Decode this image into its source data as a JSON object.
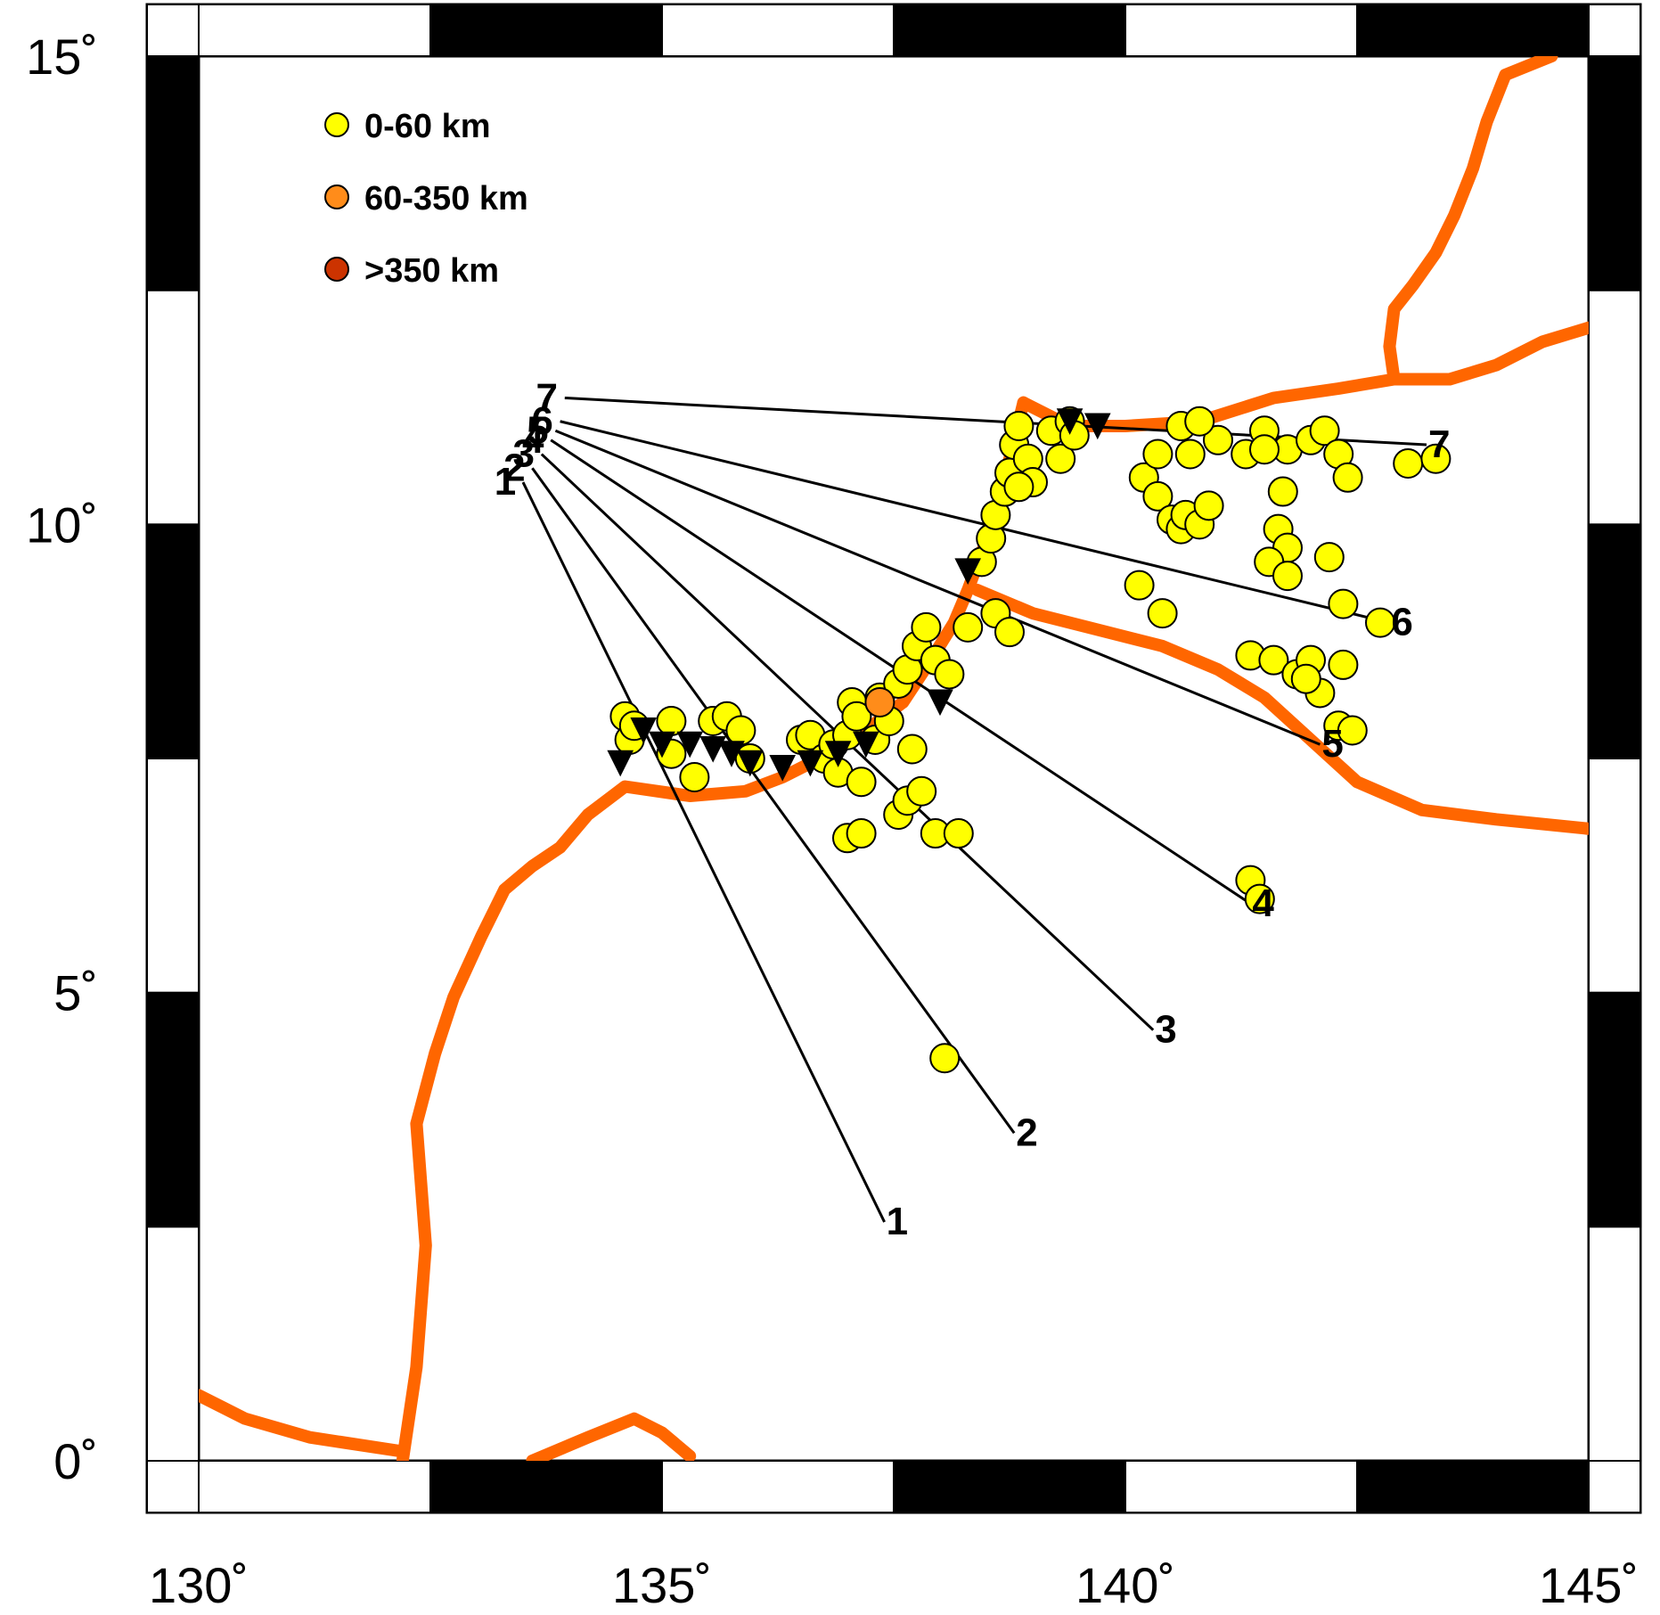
{
  "map": {
    "lon_range": [
      130,
      145
    ],
    "lat_range": [
      0,
      15
    ],
    "x_ticks": [
      {
        "value": 130,
        "label": "130˚"
      },
      {
        "value": 135,
        "label": "135˚"
      },
      {
        "value": 140,
        "label": "140˚"
      },
      {
        "value": 145,
        "label": "145˚"
      }
    ],
    "y_ticks": [
      {
        "value": 0,
        "label": "0˚"
      },
      {
        "value": 5,
        "label": "5˚"
      },
      {
        "value": 10,
        "label": "10˚"
      },
      {
        "value": 15,
        "label": "15˚"
      }
    ],
    "frame_style": "alternating black/white ticks every 2.5°",
    "colors": {
      "plate_boundary": "#ff6600",
      "shallow": "#ffff00",
      "intermediate": "#ff8c1a",
      "deep": "#cc3300",
      "profile_line": "#000000"
    }
  },
  "legend": [
    {
      "label": "0-60 km",
      "color": "#ffff00"
    },
    {
      "label": "60-350 km",
      "color": "#ff8c1a"
    },
    {
      "label": ">350 km",
      "color": "#cc3300"
    }
  ],
  "profiles": [
    {
      "label": "1",
      "start": [
        133.5,
        10.45
      ],
      "end": [
        137.4,
        2.55
      ]
    },
    {
      "label": "2",
      "start": [
        133.6,
        10.6
      ],
      "end": [
        138.8,
        3.5
      ]
    },
    {
      "label": "3",
      "start": [
        133.7,
        10.75
      ],
      "end": [
        140.3,
        4.6
      ]
    },
    {
      "label": "4",
      "start": [
        133.8,
        10.9
      ],
      "end": [
        141.35,
        5.95
      ]
    },
    {
      "label": "5",
      "start": [
        133.85,
        11.0
      ],
      "end": [
        142.1,
        7.65
      ]
    },
    {
      "label": "6",
      "start": [
        133.9,
        11.1
      ],
      "end": [
        142.85,
        8.95
      ]
    },
    {
      "label": "7",
      "start": [
        133.95,
        11.35
      ],
      "end": [
        143.25,
        10.85
      ]
    }
  ],
  "plate_boundaries": [
    [
      [
        144.6,
        15.0
      ],
      [
        144.1,
        14.8
      ],
      [
        143.9,
        14.3
      ],
      [
        143.75,
        13.8
      ],
      [
        143.55,
        13.3
      ],
      [
        143.35,
        12.9
      ],
      [
        143.1,
        12.55
      ],
      [
        142.9,
        12.3
      ],
      [
        142.85,
        11.9
      ],
      [
        142.9,
        11.55
      ]
    ],
    [
      [
        145.0,
        12.1
      ],
      [
        144.5,
        11.95
      ],
      [
        144.0,
        11.7
      ],
      [
        143.5,
        11.55
      ],
      [
        142.9,
        11.55
      ],
      [
        142.3,
        11.45
      ],
      [
        141.6,
        11.35
      ],
      [
        140.8,
        11.1
      ],
      [
        140.0,
        11.05
      ],
      [
        139.4,
        11.05
      ],
      [
        138.9,
        11.3
      ]
    ],
    [
      [
        138.9,
        11.3
      ],
      [
        138.8,
        10.9
      ],
      [
        138.7,
        10.5
      ],
      [
        138.6,
        10.1
      ],
      [
        138.45,
        9.7
      ],
      [
        138.3,
        9.3
      ],
      [
        138.15,
        8.95
      ],
      [
        137.9,
        8.55
      ],
      [
        137.6,
        8.1
      ],
      [
        137.2,
        7.8
      ],
      [
        136.8,
        7.55
      ],
      [
        136.3,
        7.3
      ],
      [
        135.9,
        7.15
      ],
      [
        135.3,
        7.1
      ],
      [
        134.6,
        7.2
      ],
      [
        134.2,
        6.9
      ],
      [
        133.9,
        6.55
      ],
      [
        133.6,
        6.35
      ],
      [
        133.3,
        6.1
      ],
      [
        133.05,
        5.6
      ],
      [
        132.75,
        4.95
      ],
      [
        132.55,
        4.35
      ],
      [
        132.35,
        3.6
      ],
      [
        132.45,
        2.3
      ],
      [
        132.35,
        1.0
      ],
      [
        132.2,
        0.0
      ]
    ],
    [
      [
        138.4,
        9.3
      ],
      [
        139.0,
        9.05
      ],
      [
        139.6,
        8.9
      ],
      [
        140.4,
        8.7
      ],
      [
        141.0,
        8.45
      ],
      [
        141.5,
        8.15
      ],
      [
        142.0,
        7.7
      ],
      [
        142.5,
        7.25
      ],
      [
        143.2,
        6.95
      ],
      [
        144.0,
        6.85
      ],
      [
        145.0,
        6.75
      ]
    ],
    [
      [
        130.0,
        0.7
      ],
      [
        130.5,
        0.45
      ],
      [
        131.2,
        0.25
      ],
      [
        132.2,
        0.1
      ]
    ],
    [
      [
        133.6,
        0.0
      ],
      [
        134.2,
        0.25
      ],
      [
        134.7,
        0.45
      ],
      [
        135.0,
        0.3
      ],
      [
        135.3,
        0.05
      ]
    ]
  ],
  "stations": [
    [
      134.55,
      7.45
    ],
    [
      134.8,
      7.8
    ],
    [
      135.0,
      7.65
    ],
    [
      135.3,
      7.65
    ],
    [
      135.55,
      7.6
    ],
    [
      135.75,
      7.55
    ],
    [
      135.95,
      7.45
    ],
    [
      136.3,
      7.4
    ],
    [
      136.6,
      7.45
    ],
    [
      136.9,
      7.55
    ],
    [
      137.2,
      7.65
    ],
    [
      138.0,
      8.1
    ],
    [
      138.3,
      9.5
    ],
    [
      139.4,
      11.1
    ],
    [
      139.7,
      11.05
    ]
  ],
  "events_shallow": [
    [
      134.6,
      7.95
    ],
    [
      134.65,
      7.7
    ],
    [
      134.7,
      7.85
    ],
    [
      135.1,
      7.9
    ],
    [
      135.1,
      7.55
    ],
    [
      135.35,
      7.3
    ],
    [
      135.55,
      7.9
    ],
    [
      135.7,
      7.95
    ],
    [
      135.85,
      7.8
    ],
    [
      135.95,
      7.5
    ],
    [
      136.5,
      7.7
    ],
    [
      136.6,
      7.75
    ],
    [
      136.75,
      7.5
    ],
    [
      136.85,
      7.65
    ],
    [
      136.9,
      7.35
    ],
    [
      137.0,
      7.75
    ],
    [
      137.05,
      8.1
    ],
    [
      137.1,
      7.95
    ],
    [
      137.15,
      7.25
    ],
    [
      137.3,
      7.7
    ],
    [
      137.35,
      8.15
    ],
    [
      137.45,
      7.9
    ],
    [
      137.55,
      8.3
    ],
    [
      137.65,
      8.45
    ],
    [
      137.75,
      8.7
    ],
    [
      137.85,
      8.9
    ],
    [
      137.95,
      8.55
    ],
    [
      137.7,
      7.6
    ],
    [
      137.55,
      6.9
    ],
    [
      137.65,
      7.05
    ],
    [
      137.8,
      7.15
    ],
    [
      137.0,
      6.65
    ],
    [
      137.15,
      6.7
    ],
    [
      137.95,
      6.7
    ],
    [
      138.2,
      6.7
    ],
    [
      138.1,
      8.4
    ],
    [
      138.3,
      8.9
    ],
    [
      138.45,
      9.6
    ],
    [
      138.55,
      9.85
    ],
    [
      138.6,
      10.1
    ],
    [
      138.7,
      10.35
    ],
    [
      138.75,
      10.55
    ],
    [
      138.8,
      10.85
    ],
    [
      138.85,
      11.05
    ],
    [
      138.95,
      10.7
    ],
    [
      139.0,
      10.45
    ],
    [
      139.2,
      11.0
    ],
    [
      139.3,
      10.7
    ],
    [
      139.4,
      11.1
    ],
    [
      138.6,
      9.05
    ],
    [
      138.75,
      8.85
    ],
    [
      140.2,
      10.5
    ],
    [
      140.35,
      10.3
    ],
    [
      140.5,
      10.05
    ],
    [
      140.6,
      9.95
    ],
    [
      140.65,
      10.1
    ],
    [
      140.8,
      10.0
    ],
    [
      140.9,
      10.2
    ],
    [
      140.35,
      10.75
    ],
    [
      140.6,
      11.05
    ],
    [
      140.7,
      10.75
    ],
    [
      141.0,
      10.9
    ],
    [
      141.3,
      10.75
    ],
    [
      141.5,
      11.0
    ],
    [
      141.75,
      10.8
    ],
    [
      141.7,
      10.35
    ],
    [
      141.65,
      9.95
    ],
    [
      141.75,
      9.75
    ],
    [
      141.55,
      9.6
    ],
    [
      141.75,
      9.45
    ],
    [
      142.0,
      10.9
    ],
    [
      142.15,
      11.0
    ],
    [
      142.3,
      10.75
    ],
    [
      142.4,
      10.5
    ],
    [
      142.2,
      9.65
    ],
    [
      142.35,
      9.15
    ],
    [
      142.75,
      8.95
    ],
    [
      140.15,
      9.35
    ],
    [
      140.4,
      9.05
    ],
    [
      141.35,
      8.6
    ],
    [
      141.6,
      8.55
    ],
    [
      141.85,
      8.4
    ],
    [
      142.0,
      8.55
    ],
    [
      142.35,
      8.5
    ],
    [
      142.1,
      8.2
    ],
    [
      142.3,
      7.85
    ],
    [
      141.95,
      8.35
    ],
    [
      142.45,
      7.8
    ],
    [
      143.05,
      10.65
    ],
    [
      143.35,
      10.7
    ],
    [
      141.35,
      6.2
    ],
    [
      141.45,
      6.0
    ],
    [
      138.05,
      4.3
    ],
    [
      140.8,
      11.1
    ],
    [
      141.5,
      10.8
    ],
    [
      139.45,
      10.95
    ],
    [
      138.85,
      10.4
    ]
  ],
  "events_intermediate": [
    [
      137.35,
      8.1
    ]
  ],
  "events_deep": []
}
